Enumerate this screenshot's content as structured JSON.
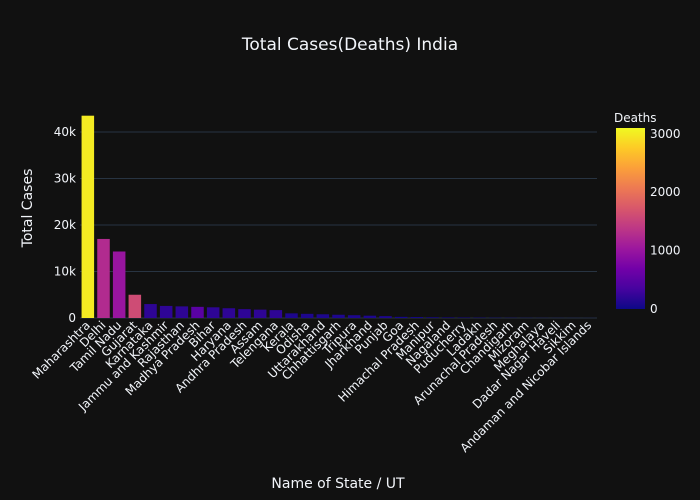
{
  "chart_data": {
    "type": "bar",
    "title": "Total Cases(Deaths) India",
    "xlabel": "Name of State / UT",
    "ylabel": "Total Cases",
    "ylim": [
      0,
      45800
    ],
    "yticks": [
      0,
      10000,
      20000,
      30000,
      40000
    ],
    "ytick_labels": [
      "0",
      "10k",
      "20k",
      "30k",
      "40k"
    ],
    "grid": true,
    "categories": [
      "Maharashtra",
      "Delhi",
      "Tamil Nadu",
      "Gujarat",
      "Karnataka",
      "Jammu and Kashmir",
      "Rajasthan",
      "Madhya Pradesh",
      "Bihar",
      "Haryana",
      "Andhra Pradesh",
      "Assam",
      "Telengana",
      "Kerala",
      "Odisha",
      "Uttarakhand",
      "Chhattisgarh",
      "Tripura",
      "Jharkhand",
      "Punjab",
      "Goa",
      "Himachal Pradesh",
      "Manipur",
      "Nagaland",
      "Puducherry",
      "Ladakh",
      "Arunachal Pradesh",
      "Chandigarh",
      "Mizoram",
      "Meghalaya",
      "Dadar Nagar Haveli",
      "Sikkim",
      "Andaman and Nicobar Islands"
    ],
    "values": [
      43500,
      17000,
      14300,
      5000,
      3000,
      2600,
      2500,
      2400,
      2300,
      2100,
      1900,
      1800,
      1700,
      1000,
      900,
      800,
      700,
      600,
      500,
      400,
      250,
      200,
      150,
      120,
      100,
      80,
      60,
      50,
      40,
      30,
      25,
      20,
      15
    ],
    "color_values": [
      3000,
      1250,
      1000,
      1600,
      200,
      200,
      200,
      500,
      200,
      200,
      200,
      200,
      200,
      100,
      100,
      100,
      100,
      100,
      100,
      100,
      50,
      50,
      50,
      50,
      50,
      50,
      50,
      50,
      50,
      50,
      50,
      50,
      50
    ],
    "colorbar": {
      "title": "Deaths",
      "range": [
        0,
        3100
      ],
      "ticks": [
        0,
        1000,
        2000,
        3000
      ],
      "tick_labels": [
        "0",
        "1000",
        "2000",
        "3000"
      ],
      "colorscale": [
        "#0d0887",
        "#46039f",
        "#7201a8",
        "#9c179e",
        "#bd3786",
        "#d8576b",
        "#ed7953",
        "#fb9f3a",
        "#fdca26",
        "#f0f921"
      ]
    }
  }
}
